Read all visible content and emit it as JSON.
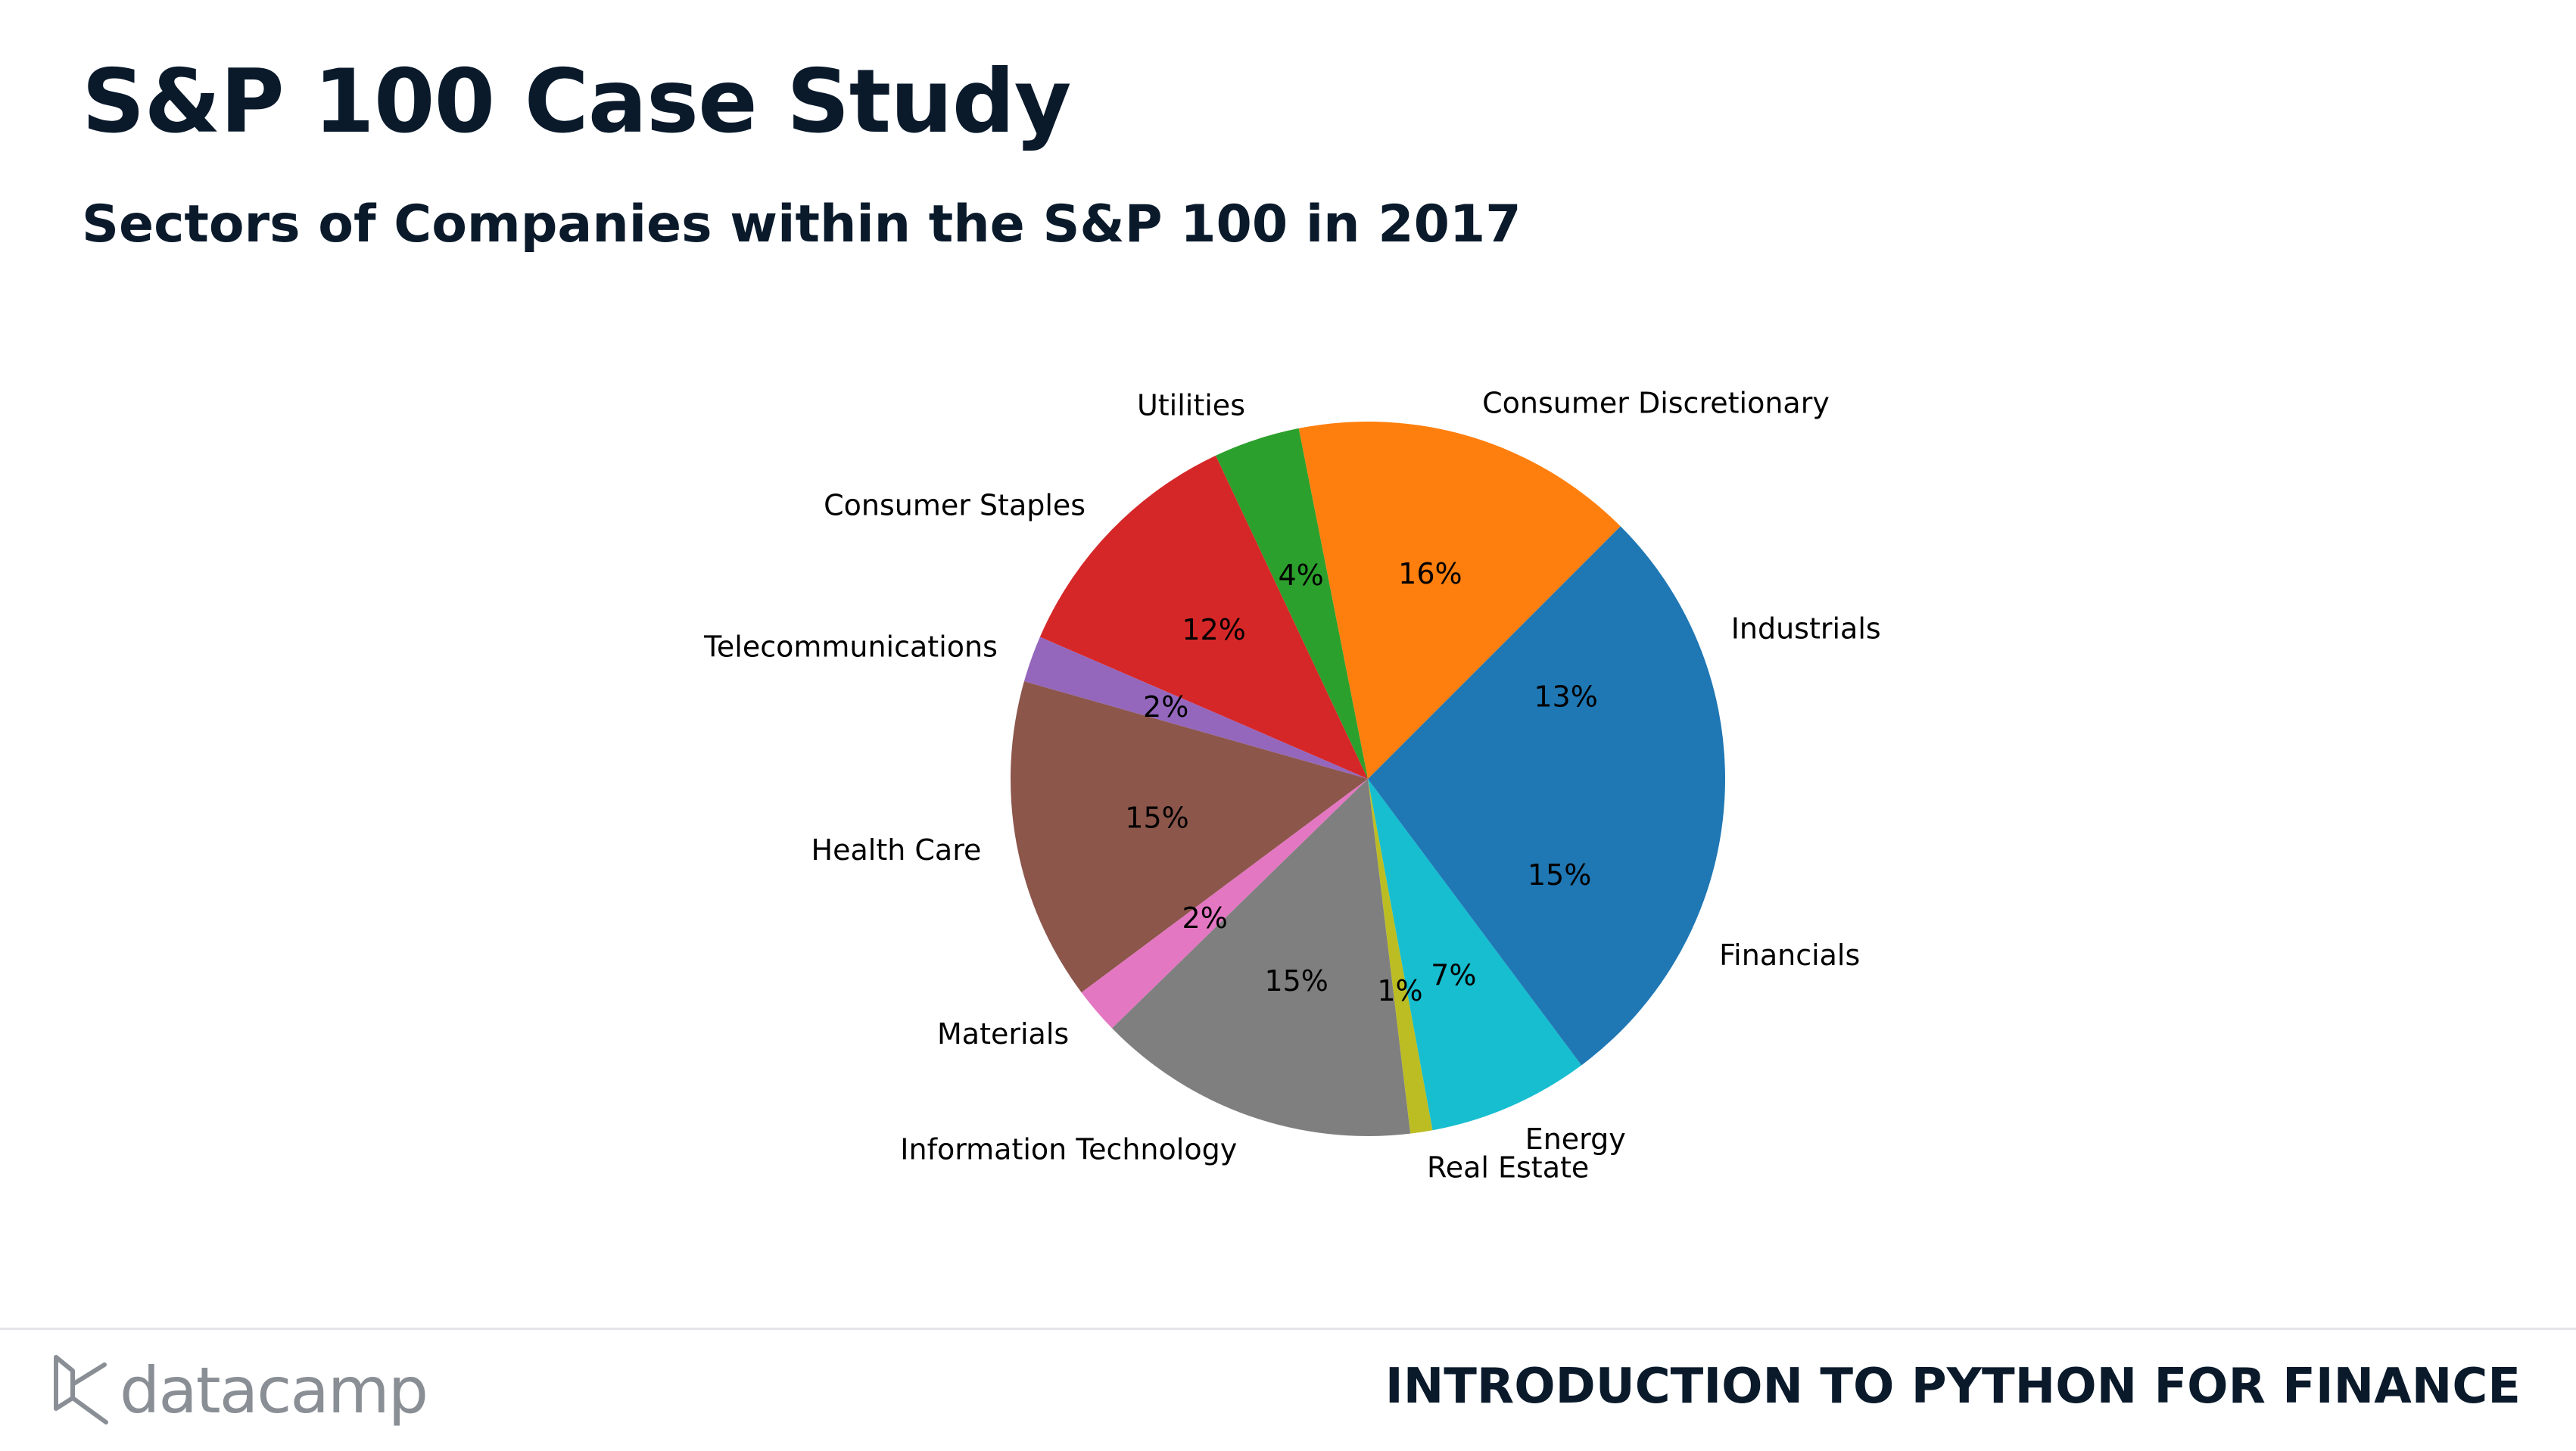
{
  "slide": {
    "title": "S&P 100 Case Study",
    "subtitle": "Sectors of Companies within the S&P 100 in 2017"
  },
  "footer": {
    "brand": "datacamp",
    "course": "INTRODUCTION TO PYTHON FOR FINANCE",
    "brand_color": "#8a8f96",
    "text_color": "#0a1a2b"
  },
  "chart_data": {
    "type": "pie",
    "title": "",
    "start_angle_deg": 0,
    "direction": "counterclockwise",
    "slices": [
      {
        "label": "Industrials",
        "value": 12.5,
        "pct_label": "13%",
        "color": "#1f77b4"
      },
      {
        "label": "Consumer Discretionary",
        "value": 15.6,
        "pct_label": "16%",
        "color": "#ff7f0e"
      },
      {
        "label": "Utilities",
        "value": 3.9,
        "pct_label": "4%",
        "color": "#2ca02c"
      },
      {
        "label": "Consumer Staples",
        "value": 11.5,
        "pct_label": "12%",
        "color": "#d62728"
      },
      {
        "label": "Telecommunications",
        "value": 2.1,
        "pct_label": "2%",
        "color": "#9467bd"
      },
      {
        "label": "Health Care",
        "value": 14.6,
        "pct_label": "15%",
        "color": "#8c564b"
      },
      {
        "label": "Materials",
        "value": 2.1,
        "pct_label": "2%",
        "color": "#e377c2"
      },
      {
        "label": "Information Technology",
        "value": 14.6,
        "pct_label": "15%",
        "color": "#7f7f7f"
      },
      {
        "label": "Real Estate",
        "value": 1.0,
        "pct_label": "1%",
        "color": "#bcbd22"
      },
      {
        "label": "Energy",
        "value": 7.3,
        "pct_label": "7%",
        "color": "#17becf"
      },
      {
        "label": "Financials",
        "value": 14.8,
        "pct_label": "15%",
        "color": "#1f77b4"
      }
    ]
  }
}
